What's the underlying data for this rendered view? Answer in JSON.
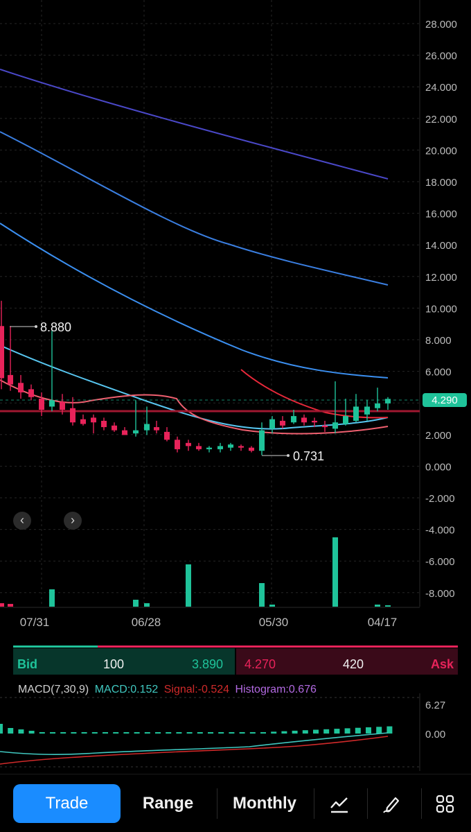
{
  "price_axis": {
    "labels": [
      "28.000",
      "26.000",
      "24.000",
      "22.000",
      "20.000",
      "18.000",
      "16.000",
      "14.000",
      "12.000",
      "10.000",
      "8.000",
      "6.000",
      "4.000",
      "2.000",
      "0.000",
      "-2.000",
      "-4.000",
      "-6.000",
      "-8.000"
    ],
    "current_price": "4.290",
    "max_marker": "8.880",
    "min_marker": "0.731"
  },
  "date_axis": [
    "07/31",
    "06/28",
    "05/30",
    "04/17"
  ],
  "nav": {
    "prev_icon": "chevron-left-icon",
    "next_icon": "chevron-right-icon"
  },
  "quote": {
    "bid_label": "Bid",
    "bid_size": "100",
    "bid_price": "3.890",
    "ask_price": "4.270",
    "ask_size": "420",
    "ask_label": "Ask"
  },
  "macd": {
    "name": "MACD(7,30,9)",
    "macd": "MACD:0.152",
    "signal": "Signal:-0.524",
    "histogram": "Histogram:0.676",
    "axis_labels": [
      "6.27",
      "0.00"
    ]
  },
  "toolbar": {
    "trade": "Trade",
    "range": "Range",
    "period": "Monthly",
    "icons": [
      "chart-line-icon",
      "draw-pen-icon",
      "grid-apps-icon"
    ]
  },
  "colors": {
    "up": "#1fc39a",
    "down": "#e8235a",
    "macd_line": "#40c8c0",
    "signal_line": "#d02a2a",
    "histogram": "#b36ae2"
  }
}
